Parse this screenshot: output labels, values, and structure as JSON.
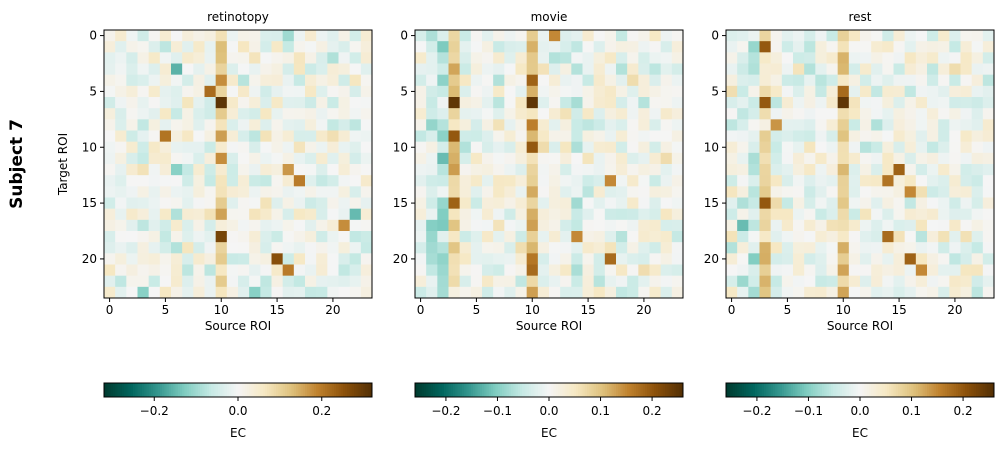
{
  "figure": {
    "row_label": "Subject 7"
  },
  "chart_data": [
    {
      "type": "heatmap",
      "title": "retinotopy",
      "xlabel": "Source ROI",
      "ylabel": "Target ROI",
      "n": 24,
      "x_ticks": [
        0,
        5,
        10,
        15,
        20
      ],
      "y_ticks": [
        0,
        5,
        10,
        15,
        20
      ],
      "colorbar": {
        "label": "EC",
        "vmin": -0.32,
        "vmax": 0.32,
        "ticks": [
          -0.2,
          0.0,
          0.2
        ],
        "tick_labels": [
          "−0.2",
          "0.0",
          "0.2"
        ]
      },
      "colormap": "BrBG_r",
      "seed": 7,
      "noise": 0.055,
      "col_bias": [
        0,
        0,
        0,
        0,
        0,
        0,
        0,
        0,
        0,
        0,
        0.09,
        0,
        0,
        0,
        0,
        0,
        0,
        0,
        0,
        0,
        0,
        0,
        0,
        0
      ],
      "strong_cells": [
        [
          6,
          10,
          0.31
        ],
        [
          5,
          9,
          0.22
        ],
        [
          4,
          10,
          0.18
        ],
        [
          9,
          5,
          0.21
        ],
        [
          11,
          10,
          0.18
        ],
        [
          12,
          16,
          0.17
        ],
        [
          13,
          17,
          0.2
        ],
        [
          18,
          10,
          0.28
        ],
        [
          20,
          15,
          0.26
        ],
        [
          21,
          16,
          0.2
        ],
        [
          17,
          21,
          0.18
        ],
        [
          16,
          22,
          -0.15
        ],
        [
          3,
          6,
          -0.16
        ],
        [
          12,
          6,
          -0.12
        ],
        [
          23,
          3,
          -0.12
        ],
        [
          23,
          13,
          -0.12
        ],
        [
          0,
          16,
          -0.1
        ]
      ]
    },
    {
      "type": "heatmap",
      "title": "movie",
      "xlabel": "Source ROI",
      "n": 24,
      "x_ticks": [
        0,
        5,
        10,
        15,
        20
      ],
      "y_ticks": [
        0,
        5,
        10,
        15,
        20
      ],
      "colorbar": {
        "label": "EC",
        "vmin": -0.26,
        "vmax": 0.26,
        "ticks": [
          -0.2,
          -0.1,
          0.0,
          0.1,
          0.2
        ],
        "tick_labels": [
          "−0.2",
          "−0.1",
          "0.0",
          "0.1",
          "0.2"
        ]
      },
      "colormap": "BrBG_r",
      "seed": 11,
      "noise": 0.045,
      "col_bias": [
        0,
        -0.03,
        -0.07,
        0.09,
        0,
        0,
        0,
        0,
        0,
        0,
        0.1,
        0,
        0,
        0,
        -0.04,
        0,
        0,
        0,
        0,
        0,
        0,
        0,
        0,
        0
      ],
      "strong_cells": [
        [
          6,
          3,
          0.25
        ],
        [
          9,
          3,
          0.2
        ],
        [
          15,
          3,
          0.19
        ],
        [
          4,
          10,
          0.19
        ],
        [
          6,
          10,
          0.25
        ],
        [
          10,
          10,
          0.2
        ],
        [
          21,
          10,
          0.18
        ],
        [
          20,
          17,
          0.18
        ],
        [
          13,
          17,
          0.15
        ],
        [
          18,
          14,
          0.15
        ],
        [
          0,
          12,
          0.15
        ],
        [
          11,
          2,
          -0.12
        ],
        [
          17,
          1,
          -0.1
        ]
      ]
    },
    {
      "type": "heatmap",
      "title": "rest",
      "xlabel": "Source ROI",
      "n": 24,
      "x_ticks": [
        0,
        5,
        10,
        15,
        20
      ],
      "y_ticks": [
        0,
        5,
        10,
        15,
        20
      ],
      "colorbar": {
        "label": "EC",
        "vmin": -0.26,
        "vmax": 0.26,
        "ticks": [
          -0.2,
          -0.1,
          0.0,
          0.1,
          0.2
        ],
        "tick_labels": [
          "−0.2",
          "−0.1",
          "0.0",
          "0.1",
          "0.2"
        ]
      },
      "colormap": "BrBG_r",
      "seed": 23,
      "noise": 0.045,
      "col_bias": [
        0,
        -0.03,
        -0.05,
        0.08,
        0,
        0,
        0,
        0,
        0,
        0,
        0.09,
        0,
        0,
        0,
        0,
        0,
        0,
        0,
        0,
        0,
        0,
        0,
        0,
        0
      ],
      "strong_cells": [
        [
          6,
          10,
          0.25
        ],
        [
          5,
          10,
          0.18
        ],
        [
          6,
          3,
          0.2
        ],
        [
          15,
          3,
          0.2
        ],
        [
          1,
          3,
          0.2
        ],
        [
          8,
          4,
          0.14
        ],
        [
          12,
          15,
          0.19
        ],
        [
          13,
          14,
          0.17
        ],
        [
          14,
          16,
          0.15
        ],
        [
          18,
          14,
          0.18
        ],
        [
          20,
          16,
          0.19
        ],
        [
          21,
          17,
          0.15
        ],
        [
          17,
          1,
          -0.12
        ]
      ]
    }
  ]
}
